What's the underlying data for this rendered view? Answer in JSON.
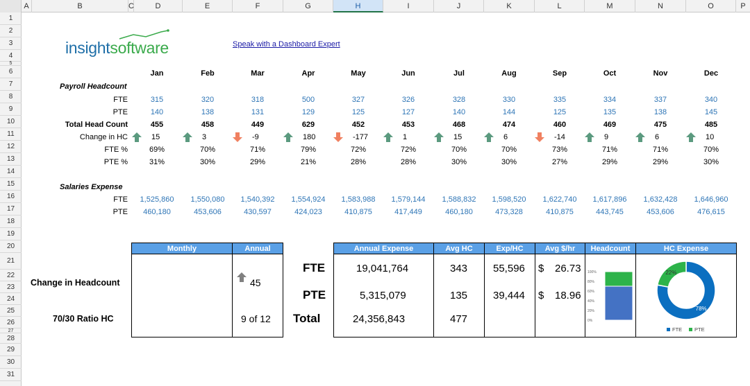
{
  "columns": [
    "A",
    "B",
    "C",
    "D",
    "E",
    "F",
    "G",
    "H",
    "I",
    "J",
    "K",
    "L",
    "M",
    "N",
    "O",
    "P"
  ],
  "rows": [
    "1",
    "2",
    "3",
    "4",
    "5",
    "6",
    "7",
    "8",
    "9",
    "10",
    "11",
    "12",
    "13",
    "14",
    "15",
    "16",
    "17",
    "18",
    "19",
    "20",
    "21",
    "22",
    "23",
    "24",
    "25",
    "26",
    "27",
    "28",
    "29",
    "30",
    "31"
  ],
  "logo": {
    "part1": "insight",
    "part2": "software"
  },
  "link_text": "Speak with a Dashboard Expert",
  "months": [
    "Jan",
    "Feb",
    "Mar",
    "Apr",
    "May",
    "Jun",
    "Jul",
    "Aug",
    "Sep",
    "Oct",
    "Nov",
    "Dec"
  ],
  "payroll": {
    "title": "Payroll Headcount",
    "fte_label": "FTE",
    "pte_label": "PTE",
    "total_label": "Total Head Count",
    "change_label": "Change in HC",
    "fte_pct_label": "FTE %",
    "pte_pct_label": "PTE %",
    "fte": [
      "315",
      "320",
      "318",
      "500",
      "327",
      "326",
      "328",
      "330",
      "335",
      "334",
      "337",
      "340"
    ],
    "pte": [
      "140",
      "138",
      "131",
      "129",
      "125",
      "127",
      "140",
      "144",
      "125",
      "135",
      "138",
      "145"
    ],
    "total": [
      "455",
      "458",
      "449",
      "629",
      "452",
      "453",
      "468",
      "474",
      "460",
      "469",
      "475",
      "485"
    ],
    "change": [
      "15",
      "3",
      "-9",
      "180",
      "-177",
      "1",
      "15",
      "6",
      "-14",
      "9",
      "6",
      "10"
    ],
    "change_dir": [
      "up",
      "up",
      "down",
      "up",
      "down",
      "up",
      "up",
      "up",
      "down",
      "up",
      "up",
      "up"
    ],
    "fte_pct": [
      "69%",
      "70%",
      "71%",
      "79%",
      "72%",
      "72%",
      "70%",
      "70%",
      "73%",
      "71%",
      "71%",
      "70%"
    ],
    "pte_pct": [
      "31%",
      "30%",
      "29%",
      "21%",
      "28%",
      "28%",
      "30%",
      "30%",
      "27%",
      "29%",
      "29%",
      "30%"
    ]
  },
  "salaries": {
    "title": "Salaries Expense",
    "fte_label": "FTE",
    "pte_label": "PTE",
    "fte": [
      "1,525,860",
      "1,550,080",
      "1,540,392",
      "1,554,924",
      "1,583,988",
      "1,579,144",
      "1,588,832",
      "1,598,520",
      "1,622,740",
      "1,617,896",
      "1,632,428",
      "1,646,960"
    ],
    "pte": [
      "460,180",
      "453,606",
      "430,597",
      "424,023",
      "410,875",
      "417,449",
      "460,180",
      "473,328",
      "410,875",
      "443,745",
      "453,606",
      "476,615"
    ]
  },
  "summary": {
    "monthly_header": "Monthly",
    "annual_header": "Annual",
    "change_label": "Change in Headcount",
    "change_value": "45",
    "ratio_label": "70/30 Ratio HC",
    "ratio_value": "9 of 12"
  },
  "expense_table": {
    "headers": [
      "Annual Expense",
      "Avg HC",
      "Exp/HC",
      "Avg $/hr",
      "Headcount",
      "HC Expense"
    ],
    "rows": [
      {
        "label": "FTE",
        "annual": "19,041,764",
        "avg_hc": "343",
        "exp_hc": "55,596",
        "dollar": "$",
        "rate": "26.73"
      },
      {
        "label": "PTE",
        "annual": "5,315,079",
        "avg_hc": "135",
        "exp_hc": "39,444",
        "dollar": "$",
        "rate": "18.96"
      },
      {
        "label": "Total",
        "annual": "24,356,843",
        "avg_hc": "477"
      }
    ]
  },
  "chart_data": [
    {
      "type": "bar",
      "stacked": true,
      "categories": [
        ""
      ],
      "series": [
        {
          "values": [
            70
          ]
        },
        {
          "values": [
            30
          ]
        }
      ],
      "ylim": [
        0,
        100
      ],
      "yticks": [
        "100%",
        "80%",
        "60%",
        "40%",
        "20%",
        "0%"
      ],
      "colors": [
        "#4472c4",
        "#2db34a"
      ]
    },
    {
      "type": "pie",
      "donut": true,
      "labels": [
        "FTE",
        "PTE"
      ],
      "values": [
        78,
        22
      ],
      "value_labels": [
        "78%",
        "22%"
      ],
      "colors": [
        "#0b6fc0",
        "#2db34a"
      ],
      "legend": "bottom"
    }
  ]
}
